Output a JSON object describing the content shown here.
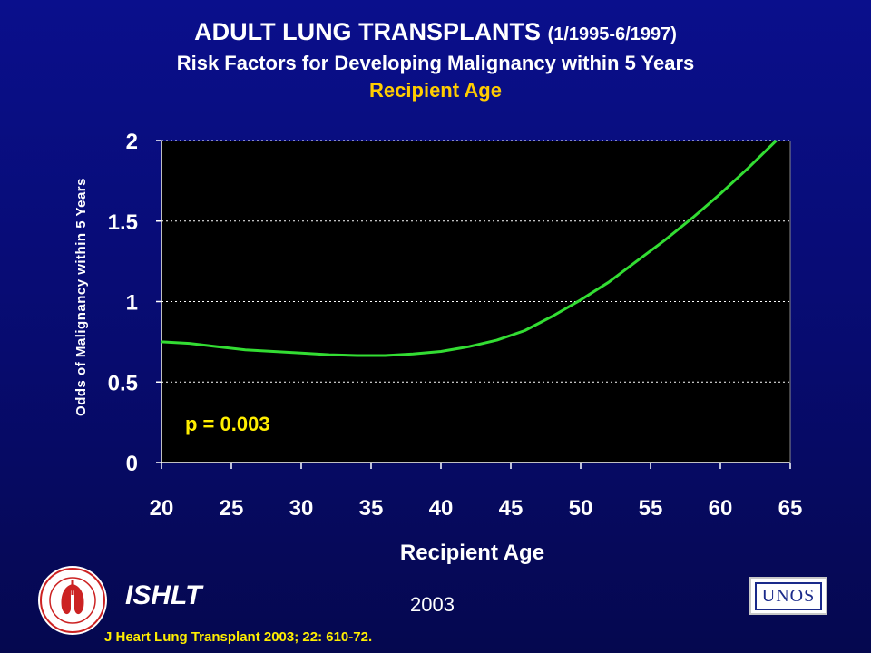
{
  "header": {
    "title": "ADULT LUNG TRANSPLANTS",
    "title_dates": "(1/1995-6/1997)",
    "subtitle": "Risk Factors for Developing Malignancy within 5 Years",
    "variable": "Recipient Age"
  },
  "footer": {
    "org": "ISHLT",
    "year": "2003",
    "citation": "J Heart Lung Transplant 2003; 22: 610-72.",
    "logo_right_text": "UNOS"
  },
  "colors": {
    "background": "#0a0f8c",
    "plot_bg": "#000000",
    "curve": "#33dd33",
    "annotation": "#ffee00",
    "subtitle_accent": "#ffcc00"
  },
  "chart_data": {
    "type": "line",
    "xlabel": "Recipient Age",
    "ylabel": "Odds of Malignancy within 5 Years",
    "xlim": [
      20,
      65
    ],
    "ylim": [
      0,
      2
    ],
    "xticks": [
      20,
      25,
      30,
      35,
      40,
      45,
      50,
      55,
      60,
      65
    ],
    "yticks": [
      0,
      0.5,
      1,
      1.5,
      2
    ],
    "ytick_labels": [
      "0",
      "0.5",
      "1",
      "1.5",
      "2"
    ],
    "grid": "horizontal dotted",
    "annotation": "p = 0.003",
    "series": [
      {
        "x": [
          20,
          22,
          24,
          26,
          28,
          30,
          32,
          34,
          36,
          38,
          40,
          42,
          44,
          46,
          48,
          50,
          52,
          54,
          56,
          58,
          60,
          62,
          64
        ],
        "y": [
          0.75,
          0.74,
          0.72,
          0.7,
          0.69,
          0.68,
          0.67,
          0.665,
          0.665,
          0.675,
          0.69,
          0.72,
          0.76,
          0.82,
          0.91,
          1.01,
          1.12,
          1.25,
          1.38,
          1.52,
          1.67,
          1.83,
          2.0
        ]
      }
    ]
  }
}
